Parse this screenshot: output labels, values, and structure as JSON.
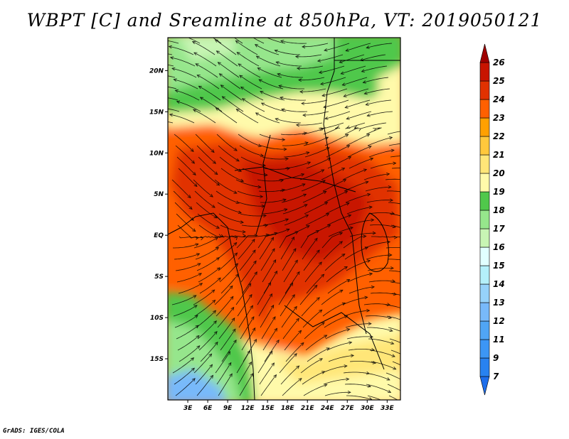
{
  "title": "WBPT [C] and Sreamline at 850hPa, VT: 2019050121",
  "credit": "GrADS: IGES/COLA",
  "map": {
    "variable": "WBPT [C]",
    "level": "850hPa",
    "valid_time": "2019050121",
    "lon_range": [
      0,
      35
    ],
    "lat_range": [
      -20,
      24
    ],
    "x_ticks": [
      "3E",
      "6E",
      "9E",
      "12E",
      "15E",
      "18E",
      "21E",
      "24E",
      "27E",
      "30E",
      "33E"
    ],
    "y_ticks": [
      "20N",
      "15N",
      "10N",
      "5N",
      "EQ",
      "5S",
      "10S",
      "15S"
    ]
  },
  "colorbar": {
    "labels": [
      "7",
      "9",
      "11",
      "12",
      "13",
      "14",
      "15",
      "16",
      "17",
      "18",
      "19",
      "20",
      "21",
      "22",
      "23",
      "24",
      "25",
      "26"
    ],
    "colors": [
      "#1e6eeb",
      "#2882f0",
      "#3c96f5",
      "#50a5f5",
      "#78b9fa",
      "#96d2fa",
      "#b4f0fa",
      "#e1ffff",
      "#c8f5b4",
      "#96e68c",
      "#50c84b",
      "#fffaaa",
      "#ffe678",
      "#ffc83c",
      "#ffa000",
      "#ff6000",
      "#e13200",
      "#c81400",
      "#a00000"
    ]
  }
}
